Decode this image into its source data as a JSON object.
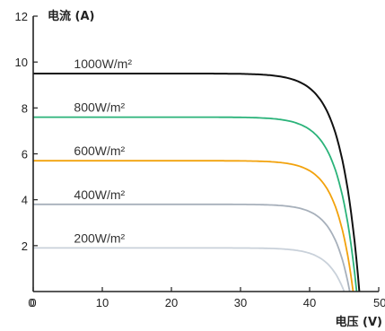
{
  "chart_data": {
    "type": "line",
    "ylabel": "电流 (A)",
    "xlabel": "电压 (V)",
    "xlim": [
      0,
      50
    ],
    "ylim": [
      0,
      12
    ],
    "xticks": [
      0,
      10,
      20,
      30,
      40,
      50
    ],
    "yticks": [
      2,
      4,
      6,
      8,
      10,
      12
    ],
    "grid": false,
    "series": [
      {
        "name": "1000W/m²",
        "color": "#111111",
        "isc": 9.5,
        "voc": 47.2,
        "knee": 36,
        "x": [
          0,
          30,
          36,
          40,
          43,
          45,
          46,
          47.2
        ],
        "y": [
          9.5,
          9.45,
          9.3,
          8.4,
          6.3,
          3.9,
          2.4,
          0
        ]
      },
      {
        "name": "800W/m²",
        "color": "#2bb37a",
        "isc": 7.6,
        "voc": 46.8,
        "knee": 36,
        "x": [
          0,
          30,
          36,
          40,
          43,
          45,
          46.8
        ],
        "y": [
          7.6,
          7.55,
          7.4,
          6.7,
          5.0,
          3.1,
          0
        ]
      },
      {
        "name": "600W/m²",
        "color": "#f2a20c",
        "isc": 5.7,
        "voc": 46.3,
        "knee": 36,
        "x": [
          0,
          30,
          36,
          40,
          43,
          45,
          46.3
        ],
        "y": [
          5.7,
          5.68,
          5.55,
          5.0,
          3.8,
          2.2,
          0
        ]
      },
      {
        "name": "400W/m²",
        "color": "#a7b0bb",
        "isc": 3.8,
        "voc": 45.8,
        "knee": 36,
        "x": [
          0,
          30,
          36,
          40,
          43,
          45.8
        ],
        "y": [
          3.8,
          3.78,
          3.7,
          3.3,
          2.4,
          0
        ]
      },
      {
        "name": "200W/m²",
        "color": "#c9d1da",
        "isc": 1.9,
        "voc": 45.0,
        "knee": 35,
        "x": [
          0,
          30,
          35,
          40,
          43,
          45
        ],
        "y": [
          1.9,
          1.88,
          1.82,
          1.5,
          0.9,
          0
        ]
      }
    ]
  }
}
